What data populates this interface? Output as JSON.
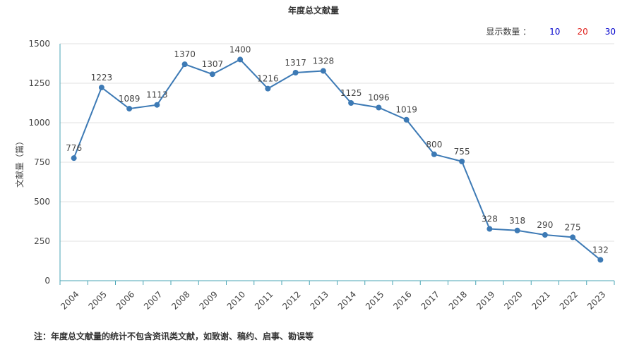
{
  "title": "年度总文献量",
  "count_selector": {
    "label": "显示数量 ：",
    "options": [
      {
        "label": "10",
        "color": "#0000cc"
      },
      {
        "label": "20",
        "color": "#e0201b"
      },
      {
        "label": "30",
        "color": "#0000cc"
      }
    ]
  },
  "footnote": "注：年度总文献量的统计不包含资讯类文献，如致谢、稿约、启事、勘误等",
  "colors": {
    "line": "#3d7ab5",
    "grid": "#e2e2e2",
    "axis": "#4aa5b5",
    "text": "#444444"
  },
  "chart_data": {
    "type": "line",
    "title": "年度总文献量",
    "xlabel": "",
    "ylabel": "文献量（篇）",
    "ylim": [
      0,
      1500
    ],
    "yticks": [
      0,
      250,
      500,
      750,
      1000,
      1250,
      1500
    ],
    "grid": true,
    "categories": [
      "2004",
      "2005",
      "2006",
      "2007",
      "2008",
      "2009",
      "2010",
      "2011",
      "2012",
      "2013",
      "2014",
      "2015",
      "2016",
      "2017",
      "2018",
      "2019",
      "2020",
      "2021",
      "2022",
      "2023"
    ],
    "series": [
      {
        "values": [
          776,
          1223,
          1089,
          1113,
          1370,
          1307,
          1400,
          1216,
          1317,
          1328,
          1125,
          1096,
          1019,
          800,
          755,
          328,
          318,
          290,
          275,
          132
        ]
      }
    ]
  }
}
